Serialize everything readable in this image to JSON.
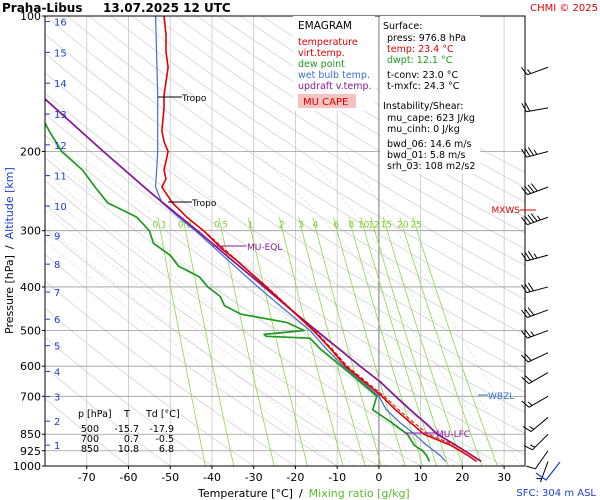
{
  "header": {
    "station": "Praha-Libus",
    "datetime": "13.07.2025 12 UTC",
    "credit": "CHMI © 2025"
  },
  "legend": {
    "title": "EMAGRAM",
    "items": [
      {
        "label": "temperature",
        "color": "#e00000"
      },
      {
        "label": "virt.temp.",
        "color": "#e00000"
      },
      {
        "label": "dew point",
        "color": "#1d9a1d"
      },
      {
        "label": "wet bulb temp.",
        "color": "#3a6fd8"
      },
      {
        "label": "updraft v.temp.",
        "color": "#8b1a9a"
      }
    ],
    "badge": "MU CAPE",
    "badge_bg": "#f7c2c2",
    "badge_color": "#e00000"
  },
  "surface": {
    "title": "Surface:",
    "press": "press: 976.8 hPa",
    "temp": "temp: 23.4 °C",
    "dwpt": "dwpt: 12.1 °C",
    "tconv": "t-conv: 23.0 °C",
    "tmxfc": "t-mxfc: 24.3 °C"
  },
  "instability": {
    "title": "Instability/Shear:",
    "mu_cape": "mu_cape: 623 J/kg",
    "mu_cinh": "mu_cinh: 0 J/kg",
    "bwd_06": "bwd_06: 14.6 m/s",
    "bwd_01": "bwd_01: 5.8 m/s",
    "srh_03": "srh_03: 108 m2/s2"
  },
  "levels_table": {
    "headers": [
      "p [hPa]",
      "T",
      "Td [°C]"
    ],
    "rows": [
      [
        "500",
        "-15.7",
        "-17.9"
      ],
      [
        "700",
        "0.7",
        "-0.5"
      ],
      [
        "850",
        "10.8",
        "6.8"
      ]
    ]
  },
  "axes": {
    "xlabel": "Temperature [°C]",
    "xlabel_sep": "/",
    "xlabel2": "Mixing ratio [g/kg]",
    "ylabel": "Pressure [hPa]",
    "ylabel_sep": "/",
    "ylabel2": "Altitude [km]",
    "sfc_label": "SFC: 304 m ASL"
  },
  "annotations": {
    "tropo_upper": "Tropo",
    "tropo_lower": "Tropo",
    "mu_eql": "MU-EQL",
    "mu_lfc": "MU-LFC",
    "mxws": "MXWS",
    "wbzl": "WBZL"
  },
  "colors": {
    "temperature": "#e00000",
    "dewpoint": "#1d9a1d",
    "wetbulb": "#3a6fd8",
    "parcel": "#8b1a9a",
    "mixing_ratio": "#8ed64e",
    "isobar": "#bfbfbf",
    "isotherm": "#cfcfcf",
    "altitude": "#1a3fd0",
    "wind": "#000000"
  },
  "chart_data": {
    "type": "line",
    "diagram": "emagram",
    "x_axis": {
      "label": "Temperature [°C]",
      "range": [
        -80,
        35
      ],
      "ticks": [
        -70,
        -60,
        -50,
        -40,
        -30,
        -20,
        -10,
        0,
        10,
        20,
        30
      ]
    },
    "y_axis": {
      "label": "Pressure [hPa]",
      "scale": "log",
      "range": [
        1000,
        100
      ],
      "ticks": [
        100,
        200,
        300,
        400,
        500,
        600,
        700,
        850,
        925,
        1000
      ]
    },
    "altitude_km_ticks": [
      1,
      2,
      3,
      4,
      5,
      6,
      7,
      8,
      9,
      10,
      11,
      12,
      13,
      14,
      15,
      16
    ],
    "mixing_ratio_labels": [
      0.1,
      0.2,
      0.5,
      1,
      2,
      3,
      4,
      6,
      8,
      10,
      12,
      15,
      20,
      25
    ],
    "series": [
      {
        "name": "temperature",
        "color": "#e00000",
        "points": [
          [
            976.8,
            23.4
          ],
          [
            950,
            21.5
          ],
          [
            925,
            19.5
          ],
          [
            900,
            17.3
          ],
          [
            850,
            10.8
          ],
          [
            800,
            7.5
          ],
          [
            750,
            4.0
          ],
          [
            700,
            0.7
          ],
          [
            650,
            -3.5
          ],
          [
            600,
            -8.0
          ],
          [
            550,
            -11.5
          ],
          [
            500,
            -15.7
          ],
          [
            450,
            -21.0
          ],
          [
            400,
            -27.0
          ],
          [
            350,
            -34.0
          ],
          [
            330,
            -37.5
          ],
          [
            300,
            -42.0
          ],
          [
            280,
            -46.0
          ],
          [
            260,
            -49.5
          ],
          [
            240,
            -52.0
          ],
          [
            230,
            -51.0
          ],
          [
            220,
            -51.5
          ],
          [
            200,
            -50.5
          ],
          [
            190,
            -51.5
          ],
          [
            180,
            -52.0
          ],
          [
            160,
            -51.5
          ],
          [
            150,
            -51.5
          ],
          [
            140,
            -51.0
          ],
          [
            130,
            -50.5
          ],
          [
            120,
            -51.0
          ],
          [
            110,
            -51.0
          ],
          [
            100,
            -51.5
          ]
        ]
      },
      {
        "name": "virt.temp.",
        "color": "#e00000",
        "points": [
          [
            976.8,
            24.5
          ],
          [
            950,
            22.6
          ],
          [
            925,
            20.5
          ],
          [
            900,
            18.3
          ],
          [
            850,
            11.8
          ],
          [
            800,
            8.3
          ],
          [
            750,
            4.7
          ],
          [
            700,
            1.3
          ],
          [
            650,
            -3.0
          ],
          [
            600,
            -7.6
          ],
          [
            550,
            -11.2
          ],
          [
            500,
            -15.4
          ],
          [
            450,
            -20.8
          ],
          [
            400,
            -26.8
          ],
          [
            350,
            -33.9
          ],
          [
            300,
            -41.9
          ]
        ]
      },
      {
        "name": "dew point",
        "color": "#1d9a1d",
        "points": [
          [
            976.8,
            12.1
          ],
          [
            950,
            11.5
          ],
          [
            925,
            10.5
          ],
          [
            900,
            8.5
          ],
          [
            850,
            6.8
          ],
          [
            800,
            3.0
          ],
          [
            750,
            -1.5
          ],
          [
            700,
            -0.5
          ],
          [
            650,
            -4.5
          ],
          [
            600,
            -9.0
          ],
          [
            550,
            -14.0
          ],
          [
            520,
            -16.5
          ],
          [
            515,
            -27.0
          ],
          [
            510,
            -27.5
          ],
          [
            500,
            -17.9
          ],
          [
            480,
            -22.0
          ],
          [
            460,
            -33.0
          ],
          [
            440,
            -37.0
          ],
          [
            420,
            -38.0
          ],
          [
            400,
            -41.0
          ],
          [
            380,
            -43.0
          ],
          [
            360,
            -48.0
          ],
          [
            340,
            -50.0
          ],
          [
            320,
            -54.0
          ],
          [
            300,
            -55.0
          ],
          [
            280,
            -58.0
          ],
          [
            260,
            -65.0
          ],
          [
            240,
            -68.0
          ],
          [
            220,
            -71.0
          ],
          [
            200,
            -76.0
          ],
          [
            180,
            -79.0
          ],
          [
            160,
            -82.0
          ],
          [
            140,
            -85.0
          ],
          [
            130,
            -88.0
          ],
          [
            120,
            -92.0
          ],
          [
            110,
            -95.0
          ],
          [
            100,
            -98.0
          ]
        ]
      },
      {
        "name": "wet bulb temp.",
        "color": "#3a6fd8",
        "points": [
          [
            976.8,
            16.0
          ],
          [
            950,
            14.8
          ],
          [
            925,
            13.2
          ],
          [
            900,
            11.5
          ],
          [
            850,
            8.5
          ],
          [
            800,
            5.0
          ],
          [
            750,
            1.8
          ],
          [
            700,
            0.0
          ],
          [
            650,
            -4.0
          ],
          [
            600,
            -8.5
          ],
          [
            550,
            -12.5
          ],
          [
            500,
            -16.5
          ],
          [
            450,
            -22.5
          ],
          [
            400,
            -29.0
          ],
          [
            350,
            -36.0
          ],
          [
            300,
            -44.0
          ],
          [
            280,
            -48.0
          ],
          [
            260,
            -52.0
          ],
          [
            240,
            -53.5
          ],
          [
            200,
            -53.0
          ],
          [
            150,
            -53.0
          ],
          [
            100,
            -53.5
          ]
        ]
      },
      {
        "name": "updraft v.temp.",
        "color": "#8b1a9a",
        "points": [
          [
            976.8,
            24.5
          ],
          [
            900,
            18.5
          ],
          [
            850,
            14.0
          ],
          [
            800,
            11.0
          ],
          [
            750,
            7.5
          ],
          [
            700,
            4.0
          ],
          [
            650,
            0.3
          ],
          [
            600,
            -4.5
          ],
          [
            550,
            -9.5
          ],
          [
            500,
            -15.0
          ],
          [
            450,
            -21.0
          ],
          [
            400,
            -27.5
          ],
          [
            350,
            -35.0
          ],
          [
            300,
            -43.5
          ],
          [
            250,
            -54.0
          ],
          [
            200,
            -66.0
          ],
          [
            150,
            -81.0
          ],
          [
            130,
            -88.0
          ]
        ]
      }
    ],
    "wind_profile": [
      {
        "p": 130,
        "dir": 250,
        "speed_kt": 15
      },
      {
        "p": 160,
        "dir": 260,
        "speed_kt": 20
      },
      {
        "p": 200,
        "dir": 255,
        "speed_kt": 35
      },
      {
        "p": 240,
        "dir": 250,
        "speed_kt": 40
      },
      {
        "p": 280,
        "dir": 250,
        "speed_kt": 45
      },
      {
        "p": 340,
        "dir": 255,
        "speed_kt": 35
      },
      {
        "p": 400,
        "dir": 255,
        "speed_kt": 30
      },
      {
        "p": 450,
        "dir": 250,
        "speed_kt": 30
      },
      {
        "p": 500,
        "dir": 250,
        "speed_kt": 25
      },
      {
        "p": 560,
        "dir": 245,
        "speed_kt": 20
      },
      {
        "p": 620,
        "dir": 240,
        "speed_kt": 20
      },
      {
        "p": 700,
        "dir": 240,
        "speed_kt": 15
      },
      {
        "p": 780,
        "dir": 230,
        "speed_kt": 15
      },
      {
        "p": 850,
        "dir": 225,
        "speed_kt": 15
      },
      {
        "p": 925,
        "dir": 215,
        "speed_kt": 10
      },
      {
        "p": 976.8,
        "dir": 200,
        "speed_kt": 5
      }
    ]
  }
}
